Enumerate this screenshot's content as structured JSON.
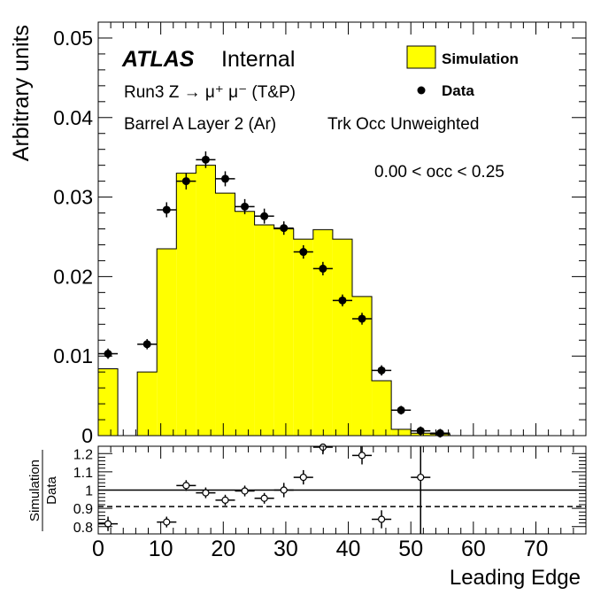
{
  "chart_data": [
    {
      "type": "bar",
      "title": "",
      "xlabel": "",
      "ylabel": "Arbitrary units",
      "xlim": [
        0,
        78
      ],
      "ylim": [
        0,
        0.052
      ],
      "y_ticks": [
        {
          "value": 0,
          "label": "0"
        },
        {
          "value": 0.01,
          "label": "0.01"
        },
        {
          "value": 0.02,
          "label": "0.02"
        },
        {
          "value": 0.03,
          "label": "0.03"
        },
        {
          "value": 0.04,
          "label": "0.04"
        },
        {
          "value": 0.05,
          "label": "0.05"
        }
      ],
      "bin_width": 3.125,
      "legend_position": "top-right",
      "simulation": {
        "name": "Simulation",
        "color": "#ffff00",
        "bins": [
          {
            "lo": 0.0,
            "hi": 3.125,
            "value": 0.0084
          },
          {
            "lo": 3.125,
            "hi": 6.25,
            "value": 0.0
          },
          {
            "lo": 6.25,
            "hi": 9.375,
            "value": 0.008
          },
          {
            "lo": 9.375,
            "hi": 12.5,
            "value": 0.0235
          },
          {
            "lo": 12.5,
            "hi": 15.625,
            "value": 0.033
          },
          {
            "lo": 15.625,
            "hi": 18.75,
            "value": 0.034
          },
          {
            "lo": 18.75,
            "hi": 21.875,
            "value": 0.0305
          },
          {
            "lo": 21.875,
            "hi": 25.0,
            "value": 0.0282
          },
          {
            "lo": 25.0,
            "hi": 28.125,
            "value": 0.0265
          },
          {
            "lo": 28.125,
            "hi": 31.25,
            "value": 0.026
          },
          {
            "lo": 31.25,
            "hi": 34.375,
            "value": 0.0247
          },
          {
            "lo": 34.375,
            "hi": 37.5,
            "value": 0.0259
          },
          {
            "lo": 37.5,
            "hi": 40.625,
            "value": 0.0247
          },
          {
            "lo": 40.625,
            "hi": 43.75,
            "value": 0.0175
          },
          {
            "lo": 43.75,
            "hi": 46.875,
            "value": 0.0069
          },
          {
            "lo": 46.875,
            "hi": 50.0,
            "value": 0.0008
          },
          {
            "lo": 50.0,
            "hi": 53.125,
            "value": 0.0003
          },
          {
            "lo": 53.125,
            "hi": 56.25,
            "value": 0.0002
          }
        ]
      },
      "data": {
        "name": "Data",
        "x_error": 1.5625,
        "points": [
          {
            "x": 1.5625,
            "y": 0.0103,
            "err": 0.0002
          },
          {
            "x": 7.8125,
            "y": 0.0115,
            "err": 0.0002
          },
          {
            "x": 10.9375,
            "y": 0.0284,
            "err": 0.0005
          },
          {
            "x": 14.0625,
            "y": 0.032,
            "err": 0.0006
          },
          {
            "x": 17.1875,
            "y": 0.0347,
            "err": 0.0006
          },
          {
            "x": 20.3125,
            "y": 0.0323,
            "err": 0.0005
          },
          {
            "x": 23.4375,
            "y": 0.0288,
            "err": 0.0005
          },
          {
            "x": 26.5625,
            "y": 0.0276,
            "err": 0.0005
          },
          {
            "x": 29.6875,
            "y": 0.0261,
            "err": 0.0004
          },
          {
            "x": 32.8125,
            "y": 0.0231,
            "err": 0.0004
          },
          {
            "x": 35.9375,
            "y": 0.021,
            "err": 0.0004
          },
          {
            "x": 39.0625,
            "y": 0.017,
            "err": 0.0003
          },
          {
            "x": 42.1875,
            "y": 0.0147,
            "err": 0.0003
          },
          {
            "x": 45.3125,
            "y": 0.0082,
            "err": 0.0002
          },
          {
            "x": 48.4375,
            "y": 0.0032,
            "err": 0.0001
          },
          {
            "x": 51.5625,
            "y": 0.0006,
            "err": 0.0001
          },
          {
            "x": 54.6875,
            "y": 0.0003,
            "err": 0.0001
          }
        ]
      },
      "annotations": {
        "atlas": "ATLAS",
        "internal": "Internal",
        "selection": "Run3 Z → μ⁺ μ⁻ (T&P)",
        "region": "Barrel A Layer 2 (Ar)",
        "mode": "Trk Occ Unweighted",
        "occupancy": "0.00 < occ < 0.25"
      }
    },
    {
      "type": "scatter",
      "title": "",
      "xlabel": "Leading Edge",
      "ylabel_top": "Simulation",
      "ylabel_bottom": "Data",
      "xlim": [
        0,
        78
      ],
      "ylim": [
        0.76,
        1.24
      ],
      "x_ticks": [
        {
          "value": 0,
          "label": "0"
        },
        {
          "value": 10,
          "label": "10"
        },
        {
          "value": 20,
          "label": "20"
        },
        {
          "value": 30,
          "label": "30"
        },
        {
          "value": 40,
          "label": "40"
        },
        {
          "value": 50,
          "label": "50"
        },
        {
          "value": 60,
          "label": "60"
        },
        {
          "value": 70,
          "label": "70"
        }
      ],
      "y_ticks": [
        {
          "value": 0.8,
          "label": "0.8"
        },
        {
          "value": 0.9,
          "label": "0.9"
        },
        {
          "value": 1.0,
          "label": "1"
        },
        {
          "value": 1.1,
          "label": "1.1"
        },
        {
          "value": 1.2,
          "label": "1.2"
        }
      ],
      "reference_line": 1.0,
      "dashed_line": 0.91,
      "x_error": 1.5625,
      "points": [
        {
          "x": 1.5625,
          "y": 0.815,
          "err": 0.02
        },
        {
          "x": 10.9375,
          "y": 0.825,
          "err": 0.01
        },
        {
          "x": 14.0625,
          "y": 1.025,
          "err": 0.01
        },
        {
          "x": 17.1875,
          "y": 0.985,
          "err": 0.01
        },
        {
          "x": 20.3125,
          "y": 0.945,
          "err": 0.01
        },
        {
          "x": 23.4375,
          "y": 0.995,
          "err": 0.01
        },
        {
          "x": 26.5625,
          "y": 0.955,
          "err": 0.01
        },
        {
          "x": 29.6875,
          "y": 1.0,
          "err": 0.02
        },
        {
          "x": 32.8125,
          "y": 1.07,
          "err": 0.02
        },
        {
          "x": 35.9375,
          "y": 1.235,
          "err": 0.02
        },
        {
          "x": 42.1875,
          "y": 1.19,
          "err": 0.03
        },
        {
          "x": 45.3125,
          "y": 0.84,
          "err": 0.03
        },
        {
          "x": 51.5625,
          "y": 1.07,
          "err": 0.35
        }
      ]
    }
  ]
}
